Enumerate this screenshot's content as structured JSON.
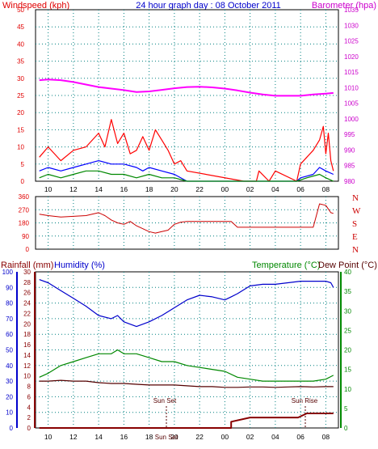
{
  "header": {
    "left_title": "Windspeed (kph)",
    "center_title": "24 hour graph day : 08 October 2011",
    "right_title": "Barometer (hpa)"
  },
  "colors": {
    "wind_axis": "#e00000",
    "baro_axis": "#cc00cc",
    "title_blue": "#0000cc",
    "humidity_axis": "#0000cc",
    "temp_axis": "#008800",
    "rain_axis": "#880000",
    "grid": "#008080",
    "gust": "#ff0000",
    "avg_wind": "#0000ff",
    "low_wind": "#008800",
    "barometer": "#ff00ff",
    "direction": "#cc0000",
    "humidity": "#0000cc",
    "temperature": "#008800",
    "dewpoint": "#550000",
    "rainfall": "#880000"
  },
  "bottom_titles": {
    "rain": "Rainfall (mm)",
    "humidity": "Humidity (%)",
    "temperature": "Temperature (°C)",
    "dewpoint": "Dew Point (°C)"
  },
  "annotations": {
    "sunset": "Sun Set",
    "sunrise": "Sun Rise"
  },
  "chart_data": [
    {
      "type": "line",
      "panel": "wind_barometer",
      "x_ticks": [
        "10",
        "12",
        "14",
        "16",
        "18",
        "20",
        "22",
        "00",
        "02",
        "04",
        "06",
        "08"
      ],
      "y_left": {
        "label": "Windspeed (kph)",
        "range": [
          0,
          50
        ],
        "ticks": [
          0,
          5,
          10,
          15,
          20,
          25,
          30,
          35,
          40,
          45,
          50
        ]
      },
      "y_right": {
        "label": "Barometer (hpa)",
        "range": [
          980,
          1035
        ],
        "ticks": [
          980,
          985,
          990,
          995,
          1000,
          1005,
          1010,
          1015,
          1020,
          1025,
          1030,
          1035
        ]
      },
      "series": [
        {
          "key": "gust",
          "x": [
            9.3,
            10,
            11,
            12,
            13,
            13.5,
            14,
            14.5,
            15,
            15.5,
            16,
            16.5,
            17,
            17.5,
            18,
            18.5,
            19,
            19.5,
            20,
            20.5,
            21,
            25.5,
            26.5,
            26.7,
            27.5,
            28,
            29.7,
            30,
            30.5,
            31,
            31.5,
            31.8,
            32,
            32.2,
            32.4,
            32.6
          ],
          "y": [
            7,
            10,
            6,
            9,
            10,
            12,
            14,
            10,
            18,
            11,
            14,
            8,
            9,
            13,
            9,
            15,
            12,
            9,
            5,
            6,
            3,
            0,
            0,
            3,
            0,
            3,
            0,
            5,
            7,
            9,
            12,
            16,
            8,
            14,
            6,
            3
          ]
        },
        {
          "key": "avg_wind",
          "x": [
            9.3,
            10,
            11,
            12,
            13,
            14,
            15,
            16,
            17,
            17.5,
            18,
            19,
            20,
            21,
            29.7,
            30,
            31,
            31.5,
            32,
            32.6
          ],
          "y": [
            3,
            4,
            3,
            4,
            5,
            6,
            5,
            5,
            4,
            3,
            4,
            3,
            2,
            0,
            0,
            1,
            2,
            4,
            3,
            2
          ]
        },
        {
          "key": "low_wind",
          "x": [
            9.3,
            10,
            11,
            12,
            13,
            14,
            15,
            16,
            17,
            18,
            19,
            20,
            21,
            29.7,
            30.5,
            31.5,
            32,
            32.6
          ],
          "y": [
            1,
            2,
            1,
            2,
            3,
            3,
            2,
            2,
            1,
            2,
            1,
            1,
            0,
            0,
            1,
            2,
            1,
            0
          ]
        },
        {
          "key": "barometer",
          "x": [
            9.3,
            10,
            11,
            12,
            13,
            14,
            15,
            16,
            17,
            18,
            19,
            20,
            21,
            22,
            23,
            24,
            25,
            26,
            27,
            28,
            29,
            30,
            31,
            32,
            32.6
          ],
          "y": [
            1012.4,
            1012.6,
            1012.4,
            1011.8,
            1011.0,
            1010.2,
            1009.7,
            1009.2,
            1008.6,
            1008.8,
            1009.3,
            1009.8,
            1010.2,
            1010.3,
            1010.1,
            1009.7,
            1009.1,
            1008.4,
            1007.8,
            1007.4,
            1007.4,
            1007.4,
            1007.8,
            1008.1,
            1008.3
          ]
        }
      ]
    },
    {
      "type": "line",
      "panel": "wind_direction",
      "y_left": {
        "range": [
          0,
          360
        ],
        "ticks": [
          0,
          90,
          180,
          270,
          360
        ]
      },
      "y_right_labels": [
        "N",
        "W",
        "S",
        "E",
        "N"
      ],
      "series": [
        {
          "key": "direction",
          "x": [
            9.3,
            10,
            11,
            12,
            13,
            14,
            14.5,
            15,
            15.5,
            16,
            16.5,
            17,
            17.5,
            18,
            18.5,
            19,
            19.5,
            20,
            20.5,
            21,
            23,
            24.5,
            25,
            27,
            29,
            30,
            31,
            31.5,
            32,
            32.4,
            32.6
          ],
          "y": [
            240,
            230,
            220,
            225,
            230,
            250,
            230,
            200,
            180,
            170,
            190,
            160,
            140,
            120,
            110,
            120,
            130,
            170,
            185,
            190,
            190,
            190,
            150,
            150,
            150,
            150,
            150,
            310,
            300,
            250,
            245
          ]
        }
      ]
    },
    {
      "type": "line",
      "panel": "rain_humidity_temperature",
      "y_rain": {
        "label": "Rainfall (mm)",
        "range": [
          0,
          30
        ],
        "ticks": [
          0,
          2,
          4,
          6,
          8,
          10,
          12,
          14,
          16,
          18,
          20,
          22,
          24,
          26,
          28,
          30
        ]
      },
      "y_humidity": {
        "label": "Humidity (%)",
        "range": [
          0,
          100
        ],
        "ticks": [
          0,
          10,
          20,
          30,
          40,
          50,
          60,
          70,
          80,
          90,
          100
        ]
      },
      "y_temp": {
        "label": "Temperature (°C)",
        "range": [
          0,
          40
        ],
        "ticks": [
          0,
          5,
          10,
          15,
          20,
          25,
          30,
          35,
          40
        ]
      },
      "series": [
        {
          "key": "humidity",
          "x": [
            9.3,
            10,
            11,
            12,
            13,
            14,
            15,
            15.5,
            16,
            17,
            18,
            19,
            20,
            21,
            22,
            23,
            24,
            24.5,
            25,
            26,
            27,
            28,
            29,
            30,
            31,
            32,
            32.4,
            32.6
          ],
          "y": [
            95,
            93,
            88,
            83,
            78,
            72,
            70,
            72,
            68,
            65,
            68,
            72,
            77,
            82,
            85,
            84,
            82,
            84,
            86,
            91,
            92,
            92,
            93,
            94,
            94,
            94,
            93,
            90
          ]
        },
        {
          "key": "temperature",
          "x": [
            9.3,
            10,
            11,
            12,
            13,
            14,
            15,
            15.5,
            16,
            17,
            18,
            19,
            20,
            21,
            22,
            23,
            24,
            25,
            26,
            27,
            28,
            29,
            30,
            31,
            32,
            32.6
          ],
          "y": [
            13,
            14,
            16,
            17,
            18,
            19,
            19,
            20,
            19,
            19,
            18,
            17,
            17,
            16,
            15.5,
            15,
            14.5,
            13,
            12.5,
            12,
            12,
            12,
            12,
            12,
            12.5,
            13.5
          ]
        },
        {
          "key": "dewpoint",
          "x": [
            9.3,
            10,
            11,
            12,
            13,
            14,
            15,
            16,
            17,
            18,
            19,
            20,
            21,
            22,
            23,
            24,
            25,
            26,
            27,
            28,
            29,
            30,
            31,
            32,
            32.6
          ],
          "y": [
            12,
            12,
            12.2,
            12,
            12,
            11.6,
            11.4,
            11.4,
            11.2,
            11,
            11,
            11,
            10.8,
            10.6,
            10.6,
            10.4,
            10.4,
            10.5,
            10.5,
            10.4,
            10.5,
            10.6,
            10.5,
            10.6,
            10.6
          ]
        },
        {
          "key": "rainfall",
          "x": [
            9.3,
            24.5,
            24.5,
            26,
            27,
            28,
            29,
            29.8,
            30.5,
            32.6
          ],
          "y": [
            0,
            0,
            1.2,
            2,
            2,
            2,
            2,
            2,
            2.8,
            2.8
          ]
        }
      ]
    }
  ]
}
